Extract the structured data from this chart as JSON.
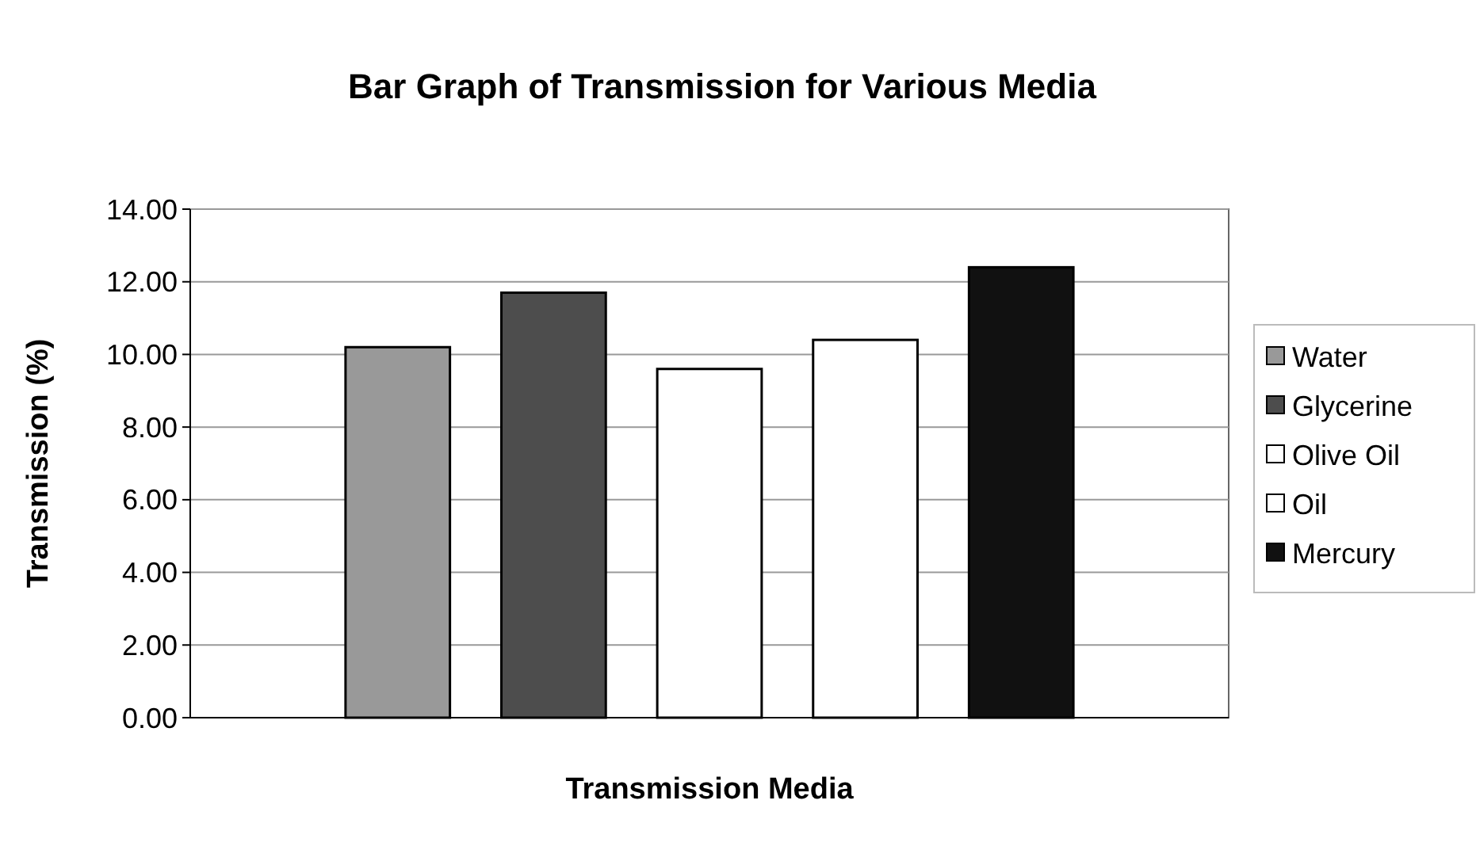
{
  "chart_data": {
    "type": "bar",
    "title": "Bar Graph of Transmission for Various Media",
    "xlabel": "Transmission Media",
    "ylabel": "Transmission (%)",
    "categories": [
      null
    ],
    "series": [
      {
        "name": "Water",
        "color": "#999999",
        "values": [
          10.2
        ]
      },
      {
        "name": "Glycerine",
        "color": "#4d4d4d",
        "values": [
          11.7
        ]
      },
      {
        "name": "Olive Oil",
        "color": "#ffffff",
        "values": [
          9.6
        ]
      },
      {
        "name": "Oil",
        "color": "#ffffff",
        "values": [
          10.4
        ]
      },
      {
        "name": "Mercury",
        "color": "#111111",
        "values": [
          12.4
        ]
      }
    ],
    "ylim": [
      0,
      14
    ],
    "yticks": [
      {
        "value": 0,
        "label": "0.00"
      },
      {
        "value": 2,
        "label": "2.00"
      },
      {
        "value": 4,
        "label": "4.00"
      },
      {
        "value": 6,
        "label": "6.00"
      },
      {
        "value": 8,
        "label": "8.00"
      },
      {
        "value": 10,
        "label": "10.00"
      },
      {
        "value": 12,
        "label": "12.00"
      },
      {
        "value": 14,
        "label": "14.00"
      }
    ],
    "grid": "y",
    "legend": "right"
  }
}
